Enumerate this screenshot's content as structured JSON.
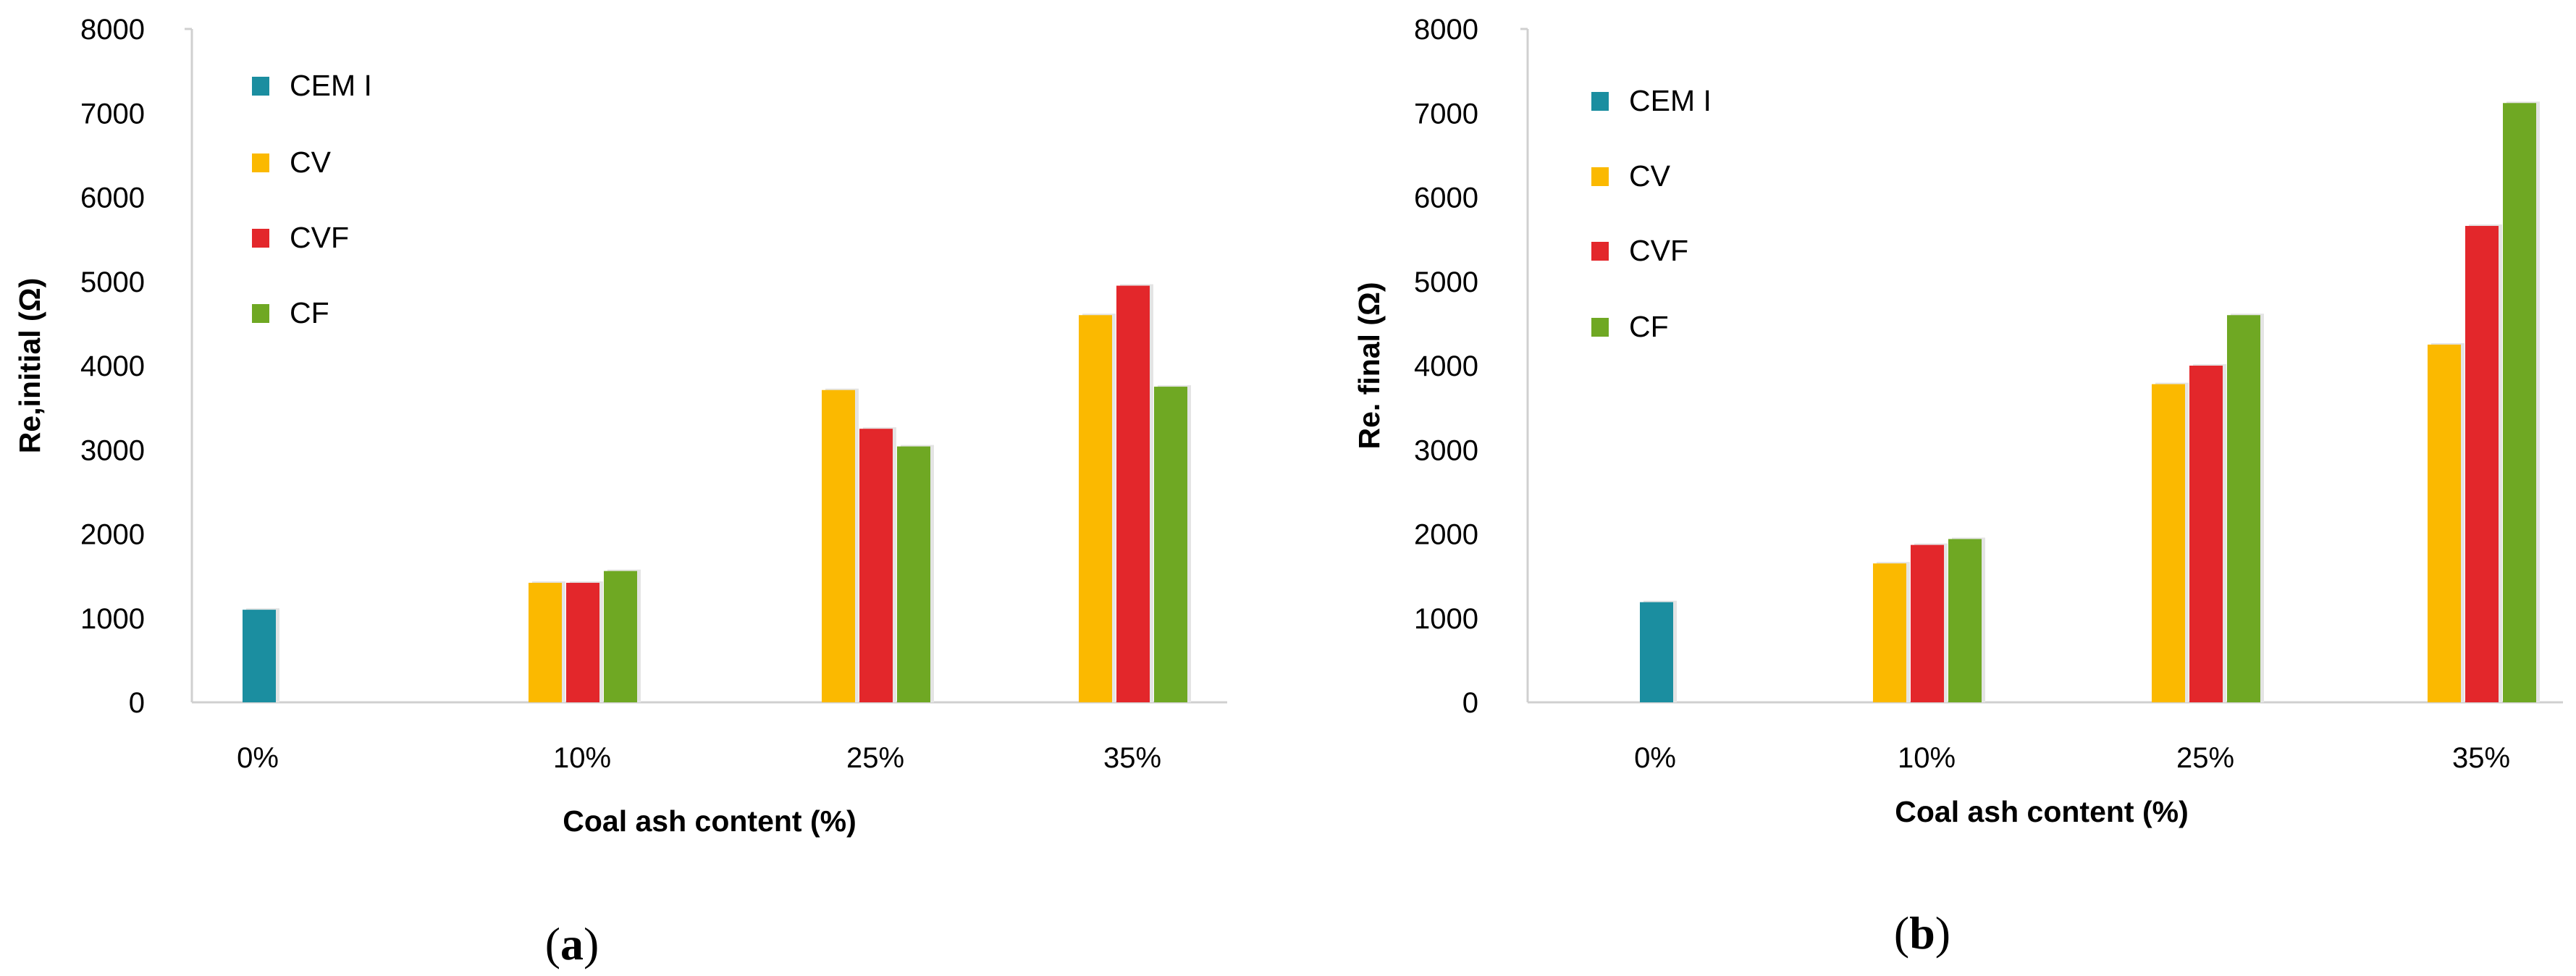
{
  "chart_data": [
    {
      "type": "bar",
      "panel": "(a)",
      "panel_open": "(",
      "panel_letter": "a",
      "panel_close": ")",
      "categories": [
        "0%",
        "10%",
        "25%",
        "35%"
      ],
      "series": [
        {
          "name": "CEM I",
          "color": "#1b8ea0",
          "values": [
            1100,
            null,
            null,
            null
          ]
        },
        {
          "name": "CV",
          "color": "#fbb900",
          "values": [
            null,
            1420,
            3710,
            4600
          ]
        },
        {
          "name": "CVF",
          "color": "#e3272b",
          "values": [
            null,
            1420,
            3250,
            4950
          ]
        },
        {
          "name": "CF",
          "color": "#6fa823",
          "values": [
            null,
            1560,
            3040,
            3750
          ]
        }
      ],
      "xlabel": "Coal ash content (%)",
      "ylabel": "Re,initial (Ω)",
      "ylim": [
        0,
        8000
      ],
      "yticks": [
        "0",
        "1000",
        "2000",
        "3000",
        "4000",
        "5000",
        "6000",
        "7000",
        "8000"
      ],
      "legend_position": "top-left"
    },
    {
      "type": "bar",
      "panel": "(b)",
      "panel_open": "(",
      "panel_letter": "b",
      "panel_close": ")",
      "categories": [
        "0%",
        "10%",
        "25%",
        "35%"
      ],
      "series": [
        {
          "name": "CEM I",
          "color": "#1b8ea0",
          "values": [
            1190,
            null,
            null,
            null
          ]
        },
        {
          "name": "CV",
          "color": "#fbb900",
          "values": [
            null,
            1650,
            3780,
            4250
          ]
        },
        {
          "name": "CVF",
          "color": "#e3272b",
          "values": [
            null,
            1870,
            4000,
            5660
          ]
        },
        {
          "name": "CF",
          "color": "#6fa823",
          "values": [
            null,
            1940,
            4600,
            7120
          ]
        }
      ],
      "xlabel": "Coal ash content (%)",
      "ylabel": "Re. final (Ω)",
      "ylim": [
        0,
        8000
      ],
      "yticks": [
        "0",
        "1000",
        "2000",
        "3000",
        "4000",
        "5000",
        "6000",
        "7000",
        "8000"
      ],
      "legend_position": "top-left"
    }
  ]
}
